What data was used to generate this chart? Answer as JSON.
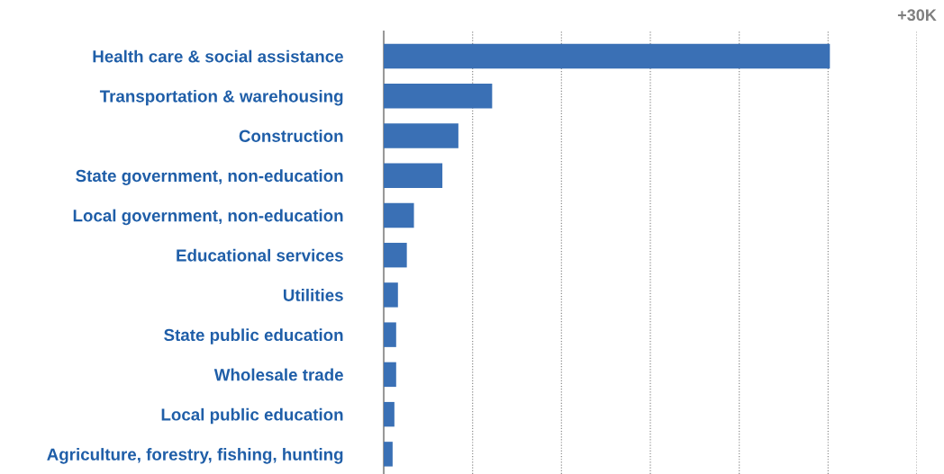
{
  "chart_data": {
    "type": "bar",
    "orientation": "horizontal",
    "categories": [
      "Health care & social assistance",
      "Transportation & warehousing",
      "Construction",
      "State government, non-education",
      "Local government, non-education",
      "Educational services",
      "Utilities",
      "State public education",
      "Wholesale trade",
      "Local public education",
      "Agriculture, forestry, fishing, hunting"
    ],
    "values": [
      25100,
      6100,
      4200,
      3300,
      1700,
      1300,
      800,
      700,
      700,
      600,
      500
    ],
    "color": "#3a70b5",
    "xlim": [
      0,
      30000
    ],
    "xticks": [
      {
        "value": 0,
        "label": null
      },
      {
        "value": 5000,
        "label": null
      },
      {
        "value": 10000,
        "label": null
      },
      {
        "value": 15000,
        "label": null
      },
      {
        "value": 20000,
        "label": null
      },
      {
        "value": 25000,
        "label": null
      },
      {
        "value": 30000,
        "label": "+30K"
      }
    ],
    "grid": "x"
  }
}
